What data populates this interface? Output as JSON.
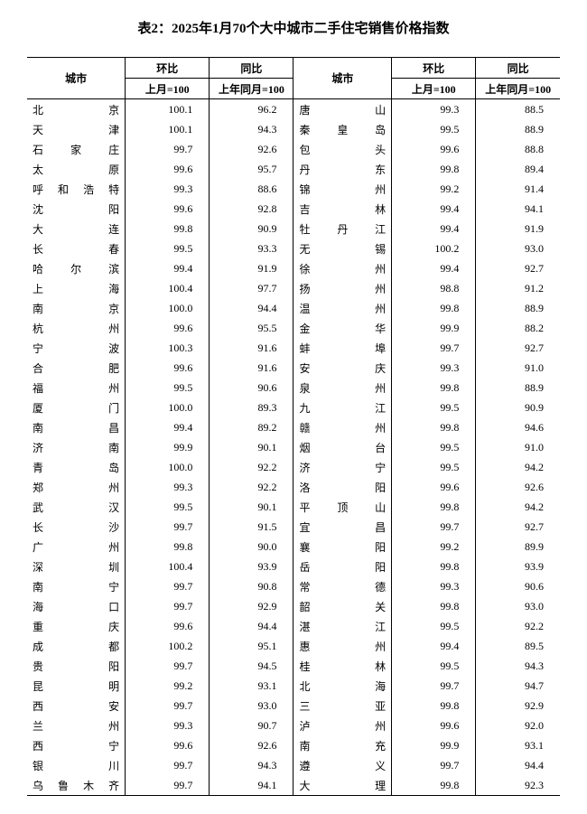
{
  "title": "表2：2025年1月70个大中城市二手住宅销售价格指数",
  "headers": {
    "city": "城市",
    "hb": "环比",
    "tb": "同比",
    "hb_sub": "上月=100",
    "tb_sub": "上年同月=100"
  },
  "table": {
    "type": "table",
    "columns": [
      "城市(左)",
      "环比(左)",
      "同比(左)",
      "城市(右)",
      "环比(右)",
      "同比(右)"
    ],
    "font_size_pt": 12,
    "border_color": "#000000",
    "background_color": "#ffffff",
    "text_color": "#000000",
    "num_align": "right",
    "city_align": "justify"
  },
  "rows": [
    {
      "c1": "北　　京",
      "h1": "100.1",
      "t1": "96.2",
      "c2": "唐　　山",
      "h2": "99.3",
      "t2": "88.5"
    },
    {
      "c1": "天　　津",
      "h1": "100.1",
      "t1": "94.3",
      "c2": "秦 皇 岛",
      "h2": "99.5",
      "t2": "88.9"
    },
    {
      "c1": "石 家 庄",
      "h1": "99.7",
      "t1": "92.6",
      "c2": "包　　头",
      "h2": "99.6",
      "t2": "88.8"
    },
    {
      "c1": "太　　原",
      "h1": "99.6",
      "t1": "95.7",
      "c2": "丹　　东",
      "h2": "99.8",
      "t2": "89.4"
    },
    {
      "c1": "呼和浩特",
      "h1": "99.3",
      "t1": "88.6",
      "c2": "锦　　州",
      "h2": "99.2",
      "t2": "91.4"
    },
    {
      "c1": "沈　　阳",
      "h1": "99.6",
      "t1": "92.8",
      "c2": "吉　　林",
      "h2": "99.4",
      "t2": "94.1"
    },
    {
      "c1": "大　　连",
      "h1": "99.8",
      "t1": "90.9",
      "c2": "牡 丹 江",
      "h2": "99.4",
      "t2": "91.9"
    },
    {
      "c1": "长　　春",
      "h1": "99.5",
      "t1": "93.3",
      "c2": "无　　锡",
      "h2": "100.2",
      "t2": "93.0"
    },
    {
      "c1": "哈 尔 滨",
      "h1": "99.4",
      "t1": "91.9",
      "c2": "徐　　州",
      "h2": "99.4",
      "t2": "92.7"
    },
    {
      "c1": "上　　海",
      "h1": "100.4",
      "t1": "97.7",
      "c2": "扬　　州",
      "h2": "98.8",
      "t2": "91.2"
    },
    {
      "c1": "南　　京",
      "h1": "100.0",
      "t1": "94.4",
      "c2": "温　　州",
      "h2": "99.8",
      "t2": "88.9"
    },
    {
      "c1": "杭　　州",
      "h1": "99.6",
      "t1": "95.5",
      "c2": "金　　华",
      "h2": "99.9",
      "t2": "88.2"
    },
    {
      "c1": "宁　　波",
      "h1": "100.3",
      "t1": "91.6",
      "c2": "蚌　　埠",
      "h2": "99.7",
      "t2": "92.7"
    },
    {
      "c1": "合　　肥",
      "h1": "99.6",
      "t1": "91.6",
      "c2": "安　　庆",
      "h2": "99.3",
      "t2": "91.0"
    },
    {
      "c1": "福　　州",
      "h1": "99.5",
      "t1": "90.6",
      "c2": "泉　　州",
      "h2": "99.8",
      "t2": "88.9"
    },
    {
      "c1": "厦　　门",
      "h1": "100.0",
      "t1": "89.3",
      "c2": "九　　江",
      "h2": "99.5",
      "t2": "90.9"
    },
    {
      "c1": "南　　昌",
      "h1": "99.4",
      "t1": "89.2",
      "c2": "赣　　州",
      "h2": "99.8",
      "t2": "94.6"
    },
    {
      "c1": "济　　南",
      "h1": "99.9",
      "t1": "90.1",
      "c2": "烟　　台",
      "h2": "99.5",
      "t2": "91.0"
    },
    {
      "c1": "青　　岛",
      "h1": "100.0",
      "t1": "92.2",
      "c2": "济　　宁",
      "h2": "99.5",
      "t2": "94.2"
    },
    {
      "c1": "郑　　州",
      "h1": "99.3",
      "t1": "92.2",
      "c2": "洛　　阳",
      "h2": "99.6",
      "t2": "92.6"
    },
    {
      "c1": "武　　汉",
      "h1": "99.5",
      "t1": "90.1",
      "c2": "平 顶 山",
      "h2": "99.8",
      "t2": "94.2"
    },
    {
      "c1": "长　　沙",
      "h1": "99.7",
      "t1": "91.5",
      "c2": "宜　　昌",
      "h2": "99.7",
      "t2": "92.7"
    },
    {
      "c1": "广　　州",
      "h1": "99.8",
      "t1": "90.0",
      "c2": "襄　　阳",
      "h2": "99.2",
      "t2": "89.9"
    },
    {
      "c1": "深　　圳",
      "h1": "100.4",
      "t1": "93.9",
      "c2": "岳　　阳",
      "h2": "99.8",
      "t2": "93.9"
    },
    {
      "c1": "南　　宁",
      "h1": "99.7",
      "t1": "90.8",
      "c2": "常　　德",
      "h2": "99.3",
      "t2": "90.6"
    },
    {
      "c1": "海　　口",
      "h1": "99.7",
      "t1": "92.9",
      "c2": "韶　　关",
      "h2": "99.8",
      "t2": "93.0"
    },
    {
      "c1": "重　　庆",
      "h1": "99.6",
      "t1": "94.4",
      "c2": "湛　　江",
      "h2": "99.5",
      "t2": "92.2"
    },
    {
      "c1": "成　　都",
      "h1": "100.2",
      "t1": "95.1",
      "c2": "惠　　州",
      "h2": "99.4",
      "t2": "89.5"
    },
    {
      "c1": "贵　　阳",
      "h1": "99.7",
      "t1": "94.5",
      "c2": "桂　　林",
      "h2": "99.5",
      "t2": "94.3"
    },
    {
      "c1": "昆　　明",
      "h1": "99.2",
      "t1": "93.1",
      "c2": "北　　海",
      "h2": "99.7",
      "t2": "94.7"
    },
    {
      "c1": "西　　安",
      "h1": "99.7",
      "t1": "93.0",
      "c2": "三　　亚",
      "h2": "99.8",
      "t2": "92.9"
    },
    {
      "c1": "兰　　州",
      "h1": "99.3",
      "t1": "90.7",
      "c2": "泸　　州",
      "h2": "99.6",
      "t2": "92.0"
    },
    {
      "c1": "西　　宁",
      "h1": "99.6",
      "t1": "92.6",
      "c2": "南　　充",
      "h2": "99.9",
      "t2": "93.1"
    },
    {
      "c1": "银　　川",
      "h1": "99.7",
      "t1": "94.3",
      "c2": "遵　　义",
      "h2": "99.7",
      "t2": "94.4"
    },
    {
      "c1": "乌鲁木齐",
      "h1": "99.7",
      "t1": "94.1",
      "c2": "大　　理",
      "h2": "99.8",
      "t2": "92.3"
    }
  ]
}
